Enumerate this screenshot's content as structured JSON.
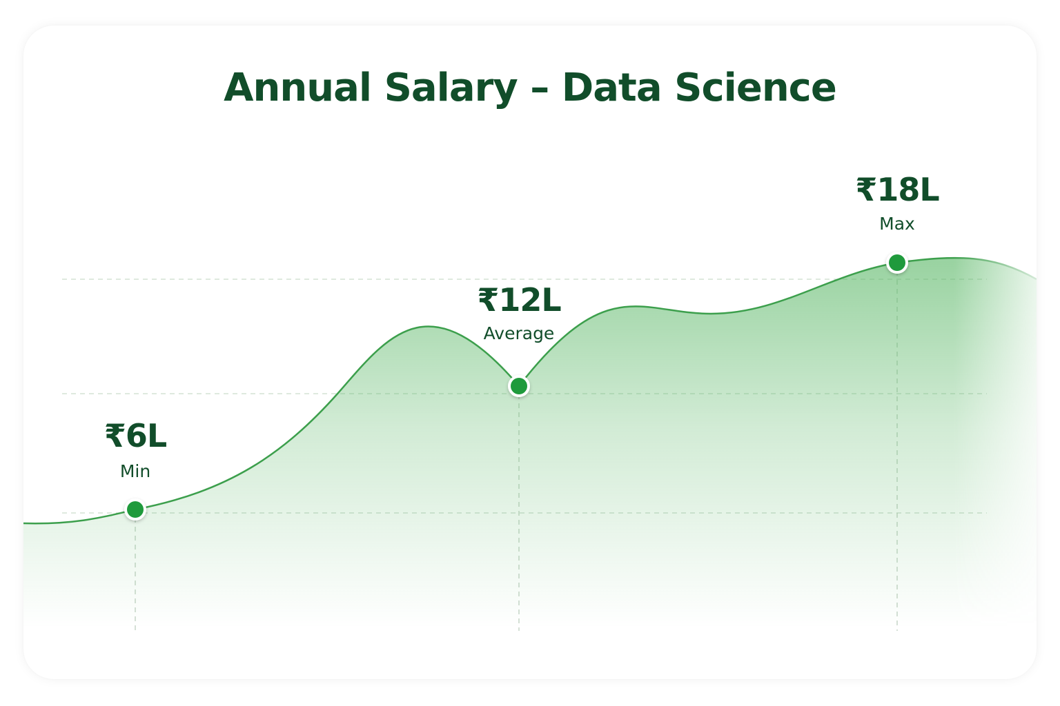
{
  "chart_data": {
    "type": "area",
    "title": "Annual Salary – Data Science",
    "xlabel": "",
    "ylabel": "",
    "grid": true,
    "series": [
      {
        "points": [
          {
            "label": "Min",
            "value": 6,
            "display": "₹6L"
          },
          {
            "label": "Average",
            "value": 12,
            "display": "₹12L"
          },
          {
            "label": "Max",
            "value": 18,
            "display": "₹18L"
          }
        ]
      }
    ]
  },
  "colors": {
    "title": "#114d2a",
    "line": "#3c9f4c",
    "marker": "#1f9a3c",
    "fill": "#5cb868",
    "grid": "#c9dccb"
  }
}
